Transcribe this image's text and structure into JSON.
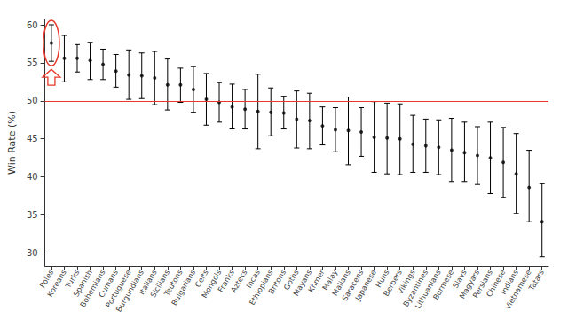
{
  "chart_data": {
    "type": "scatter",
    "y_label": "Win Rate (%)",
    "categories": [
      "Poles",
      "Koreans",
      "Turks",
      "Spanish",
      "Bohemians",
      "Cumans",
      "Portuguese",
      "Burgundians",
      "Italians",
      "Sicilians",
      "Teutons",
      "Bulgarians",
      "Celts",
      "Mongols",
      "Franks",
      "Aztecs",
      "Incas",
      "Ethiopians",
      "Britons",
      "Goths",
      "Mayans",
      "Khmer",
      "Malay",
      "Malians",
      "Saracens",
      "Japanese",
      "Huns",
      "Berbers",
      "Vikings",
      "Byzantines",
      "Lithuanians",
      "Burmese",
      "Slavs",
      "Magyars",
      "Persians",
      "Chinese",
      "Indians",
      "Vietnamese",
      "Tatars"
    ],
    "values": [
      57.6,
      55.6,
      55.6,
      55.3,
      54.8,
      53.9,
      53.4,
      53.3,
      53.0,
      52.1,
      52.1,
      51.5,
      50.2,
      49.8,
      49.2,
      48.9,
      48.6,
      48.5,
      48.4,
      47.6,
      47.4,
      46.7,
      46.2,
      46.1,
      45.9,
      45.2,
      45.1,
      45.0,
      44.3,
      44.1,
      43.9,
      43.5,
      43.2,
      42.8,
      42.5,
      41.9,
      40.4,
      38.6,
      34.1
    ],
    "lower": [
      55.2,
      52.5,
      53.8,
      52.8,
      52.8,
      51.8,
      50.2,
      50.3,
      49.5,
      48.8,
      49.8,
      48.5,
      46.8,
      47.2,
      46.3,
      46.3,
      43.7,
      45.4,
      46.3,
      43.8,
      43.7,
      44.2,
      43.3,
      41.6,
      42.7,
      40.6,
      40.4,
      40.3,
      40.6,
      40.6,
      40.3,
      39.4,
      39.4,
      39.0,
      37.8,
      37.3,
      35.2,
      34.1,
      29.5
    ],
    "upper": [
      60.0,
      58.6,
      57.4,
      57.7,
      56.8,
      56.1,
      56.7,
      56.3,
      56.5,
      55.5,
      54.3,
      54.5,
      53.6,
      52.4,
      52.2,
      51.5,
      53.5,
      51.7,
      50.6,
      51.3,
      51.0,
      49.2,
      49.1,
      50.5,
      49.1,
      49.9,
      49.7,
      49.6,
      48.1,
      47.6,
      47.5,
      47.7,
      47.2,
      46.6,
      47.2,
      46.5,
      45.7,
      43.5,
      39.1
    ],
    "color": "#000000",
    "reference_line": 50,
    "reference_color": "#e8392b",
    "ylim": [
      28.3,
      60.7
    ],
    "yticks": [
      30,
      35,
      40,
      45,
      50,
      55,
      60
    ],
    "grid": false
  }
}
